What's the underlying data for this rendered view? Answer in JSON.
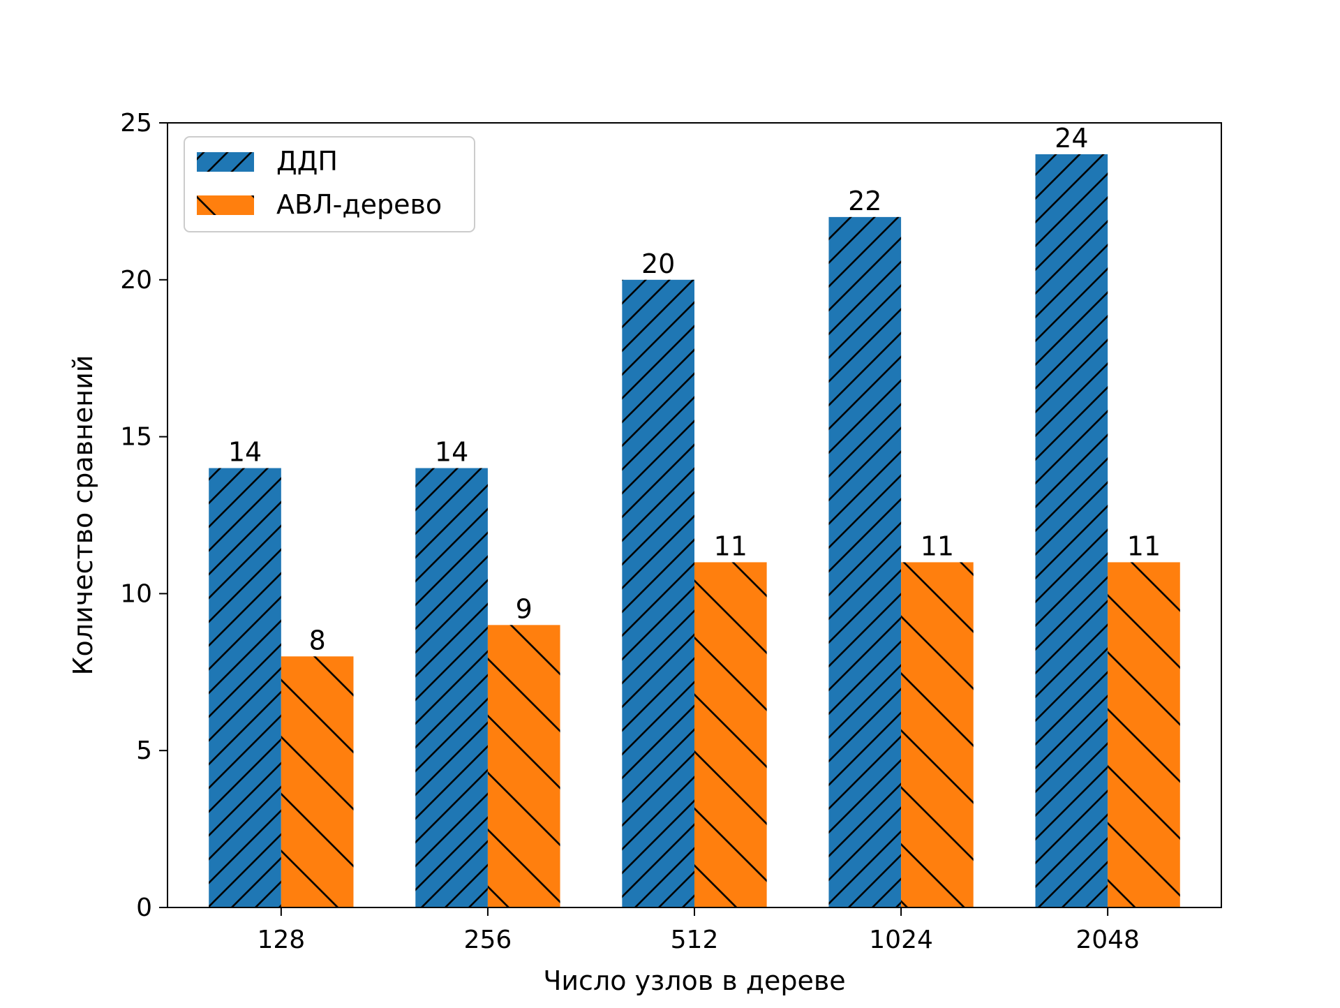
{
  "chart_data": {
    "type": "bar",
    "title": "",
    "xlabel": "Число узлов в дереве",
    "ylabel": "Количество сравнений",
    "categories": [
      "128",
      "256",
      "512",
      "1024",
      "2048"
    ],
    "series": [
      {
        "name": "ДДП",
        "values": [
          14,
          14,
          20,
          22,
          24
        ],
        "color": "#1f77b4",
        "hatch": "forward-diagonal"
      },
      {
        "name": "АВЛ-дерево",
        "values": [
          8,
          9,
          11,
          11,
          11
        ],
        "color": "#ff7f0e",
        "hatch": "back-diagonal"
      }
    ],
    "ylim": [
      0,
      25
    ],
    "yticks": [
      "0",
      "5",
      "10",
      "15",
      "20",
      "25"
    ],
    "grid": false,
    "legend": "top-left",
    "data_labels": true
  }
}
